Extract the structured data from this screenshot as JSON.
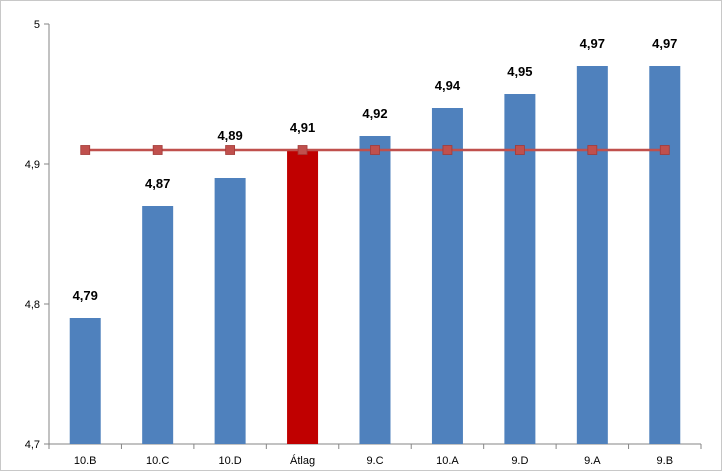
{
  "chart_data": {
    "type": "bar",
    "categories": [
      "10.B",
      "10.C",
      "10.D",
      "Átlag",
      "9.C",
      "10.A",
      "9.D",
      "9.A",
      "9.B"
    ],
    "values": [
      4.79,
      4.87,
      4.89,
      4.91,
      4.92,
      4.94,
      4.95,
      4.97,
      4.97
    ],
    "data_labels": [
      "4,79",
      "4,87",
      "4,89",
      "4,91",
      "4,92",
      "4,94",
      "4,95",
      "4,97",
      "4,97"
    ],
    "highlight_category": "Átlag",
    "reference_line": {
      "value": 4.91
    },
    "ylim": [
      4.7,
      5.0
    ],
    "yticks": [
      {
        "value": 4.7,
        "label": "4,7"
      },
      {
        "value": 4.8,
        "label": "4,8"
      },
      {
        "value": 4.9,
        "label": "4,9"
      },
      {
        "value": 5.0,
        "label": "5"
      }
    ],
    "title": "",
    "xlabel": "",
    "ylabel": "",
    "grid": false,
    "colors": {
      "bar": "#4f81bd",
      "highlight_bar": "#c00000",
      "reference_line": "#c0504d",
      "marker": "#c0504d"
    }
  }
}
